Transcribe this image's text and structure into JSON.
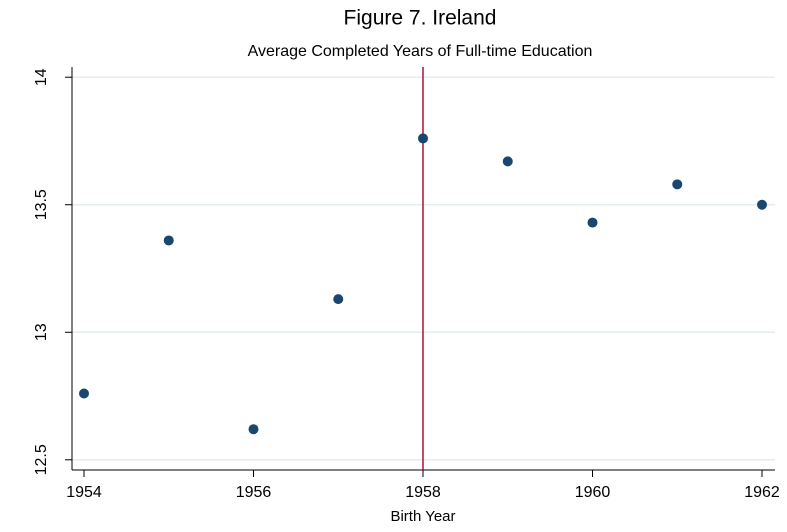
{
  "chart_data": {
    "type": "scatter",
    "title": "Figure 7. Ireland",
    "subtitle": "Average Completed Years of Full-time Education",
    "xlabel": "Birth Year",
    "x": [
      1954,
      1955,
      1956,
      1957,
      1958,
      1959,
      1960,
      1961,
      1962
    ],
    "values": [
      12.76,
      13.36,
      12.62,
      13.13,
      13.76,
      13.67,
      13.43,
      13.58,
      13.5
    ],
    "color": "#1a476f",
    "xlim": [
      1954,
      1962
    ],
    "xticks": [
      1954,
      1956,
      1958,
      1960,
      1962
    ],
    "ylim": [
      12.46,
      14.04
    ],
    "yticks": [
      12.5,
      13,
      13.5,
      14
    ],
    "grid": true,
    "vline": 1958,
    "vline_color": "#b0103a"
  }
}
